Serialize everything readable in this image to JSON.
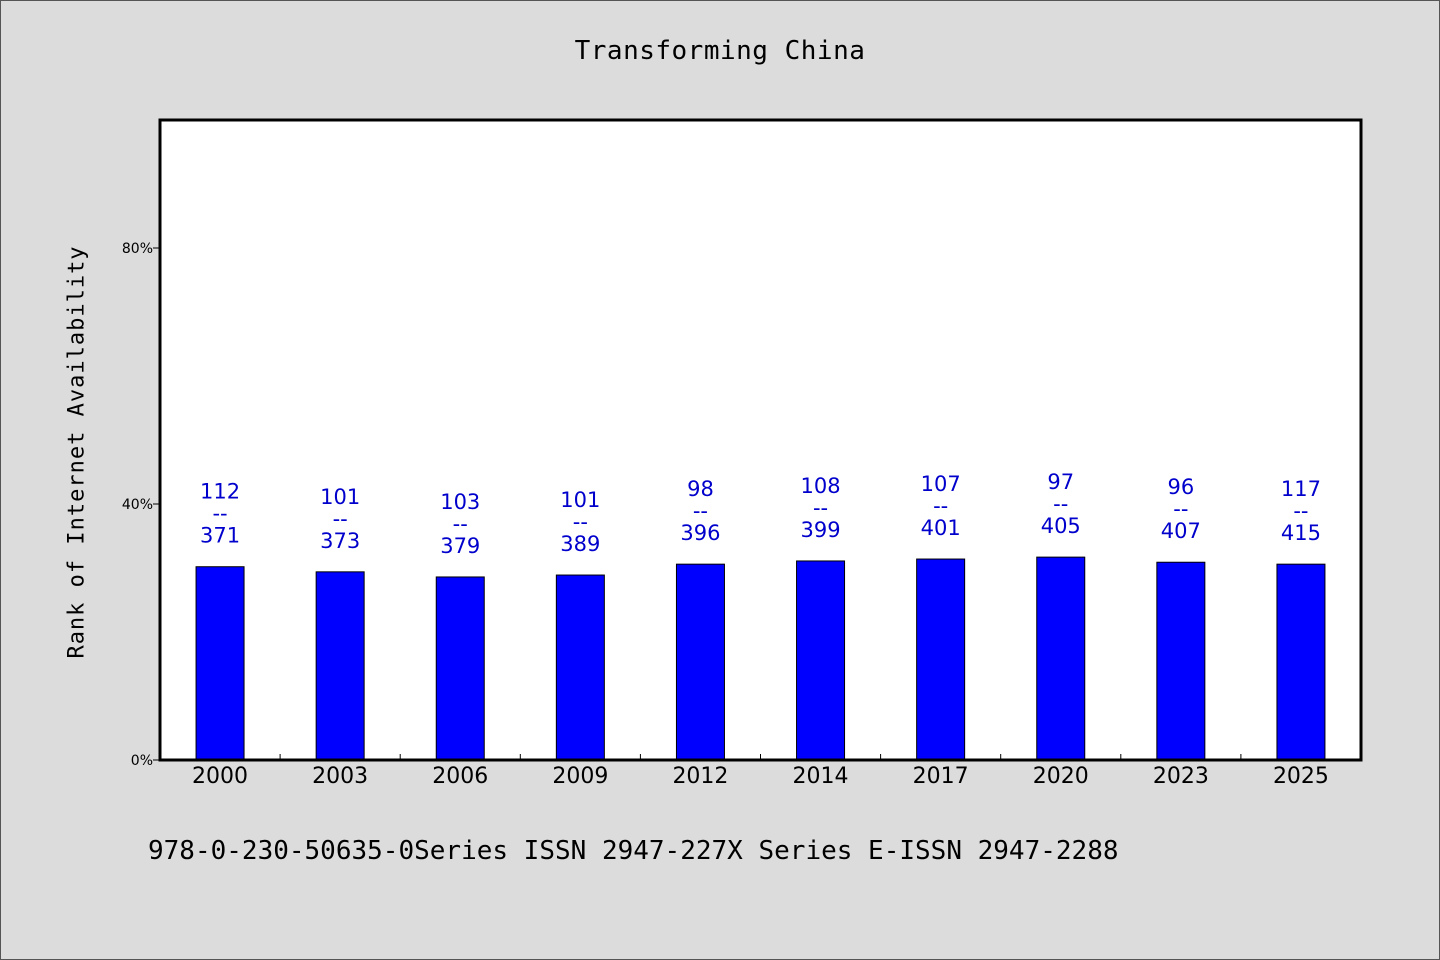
{
  "chart_data": {
    "type": "bar",
    "title": "Transforming China",
    "xlabel": "",
    "ylabel": "Rank of Internet Availability",
    "categories": [
      "2000",
      "2003",
      "2006",
      "2009",
      "2012",
      "2014",
      "2017",
      "2020",
      "2023",
      "2025"
    ],
    "values": [
      30.2,
      29.4,
      28.6,
      28.9,
      30.6,
      31.1,
      31.4,
      31.7,
      30.9,
      30.6
    ],
    "bar_labels": [
      {
        "top": "112",
        "sep": "--",
        "bottom": "371"
      },
      {
        "top": "101",
        "sep": "--",
        "bottom": "373"
      },
      {
        "top": "103",
        "sep": "--",
        "bottom": "379"
      },
      {
        "top": "101",
        "sep": "--",
        "bottom": "389"
      },
      {
        "top": "98",
        "sep": "--",
        "bottom": "396"
      },
      {
        "top": "108",
        "sep": "--",
        "bottom": "399"
      },
      {
        "top": "107",
        "sep": "--",
        "bottom": "401"
      },
      {
        "top": "97",
        "sep": "--",
        "bottom": "405"
      },
      {
        "top": "96",
        "sep": "--",
        "bottom": "407"
      },
      {
        "top": "117",
        "sep": "--",
        "bottom": "415"
      }
    ],
    "ylim": [
      0,
      100
    ],
    "yticks": [
      0,
      40,
      80
    ],
    "ytick_labels": [
      "0%",
      "40%",
      "80%"
    ],
    "grid": false,
    "colors": {
      "bar": "#0000ff",
      "bar_label": "#0000cc",
      "background": "#dcdcdc",
      "plot_bg": "#ffffff"
    }
  },
  "footer": "978-0-230-50635-0Series ISSN 2947-227X Series E-ISSN 2947-2288"
}
